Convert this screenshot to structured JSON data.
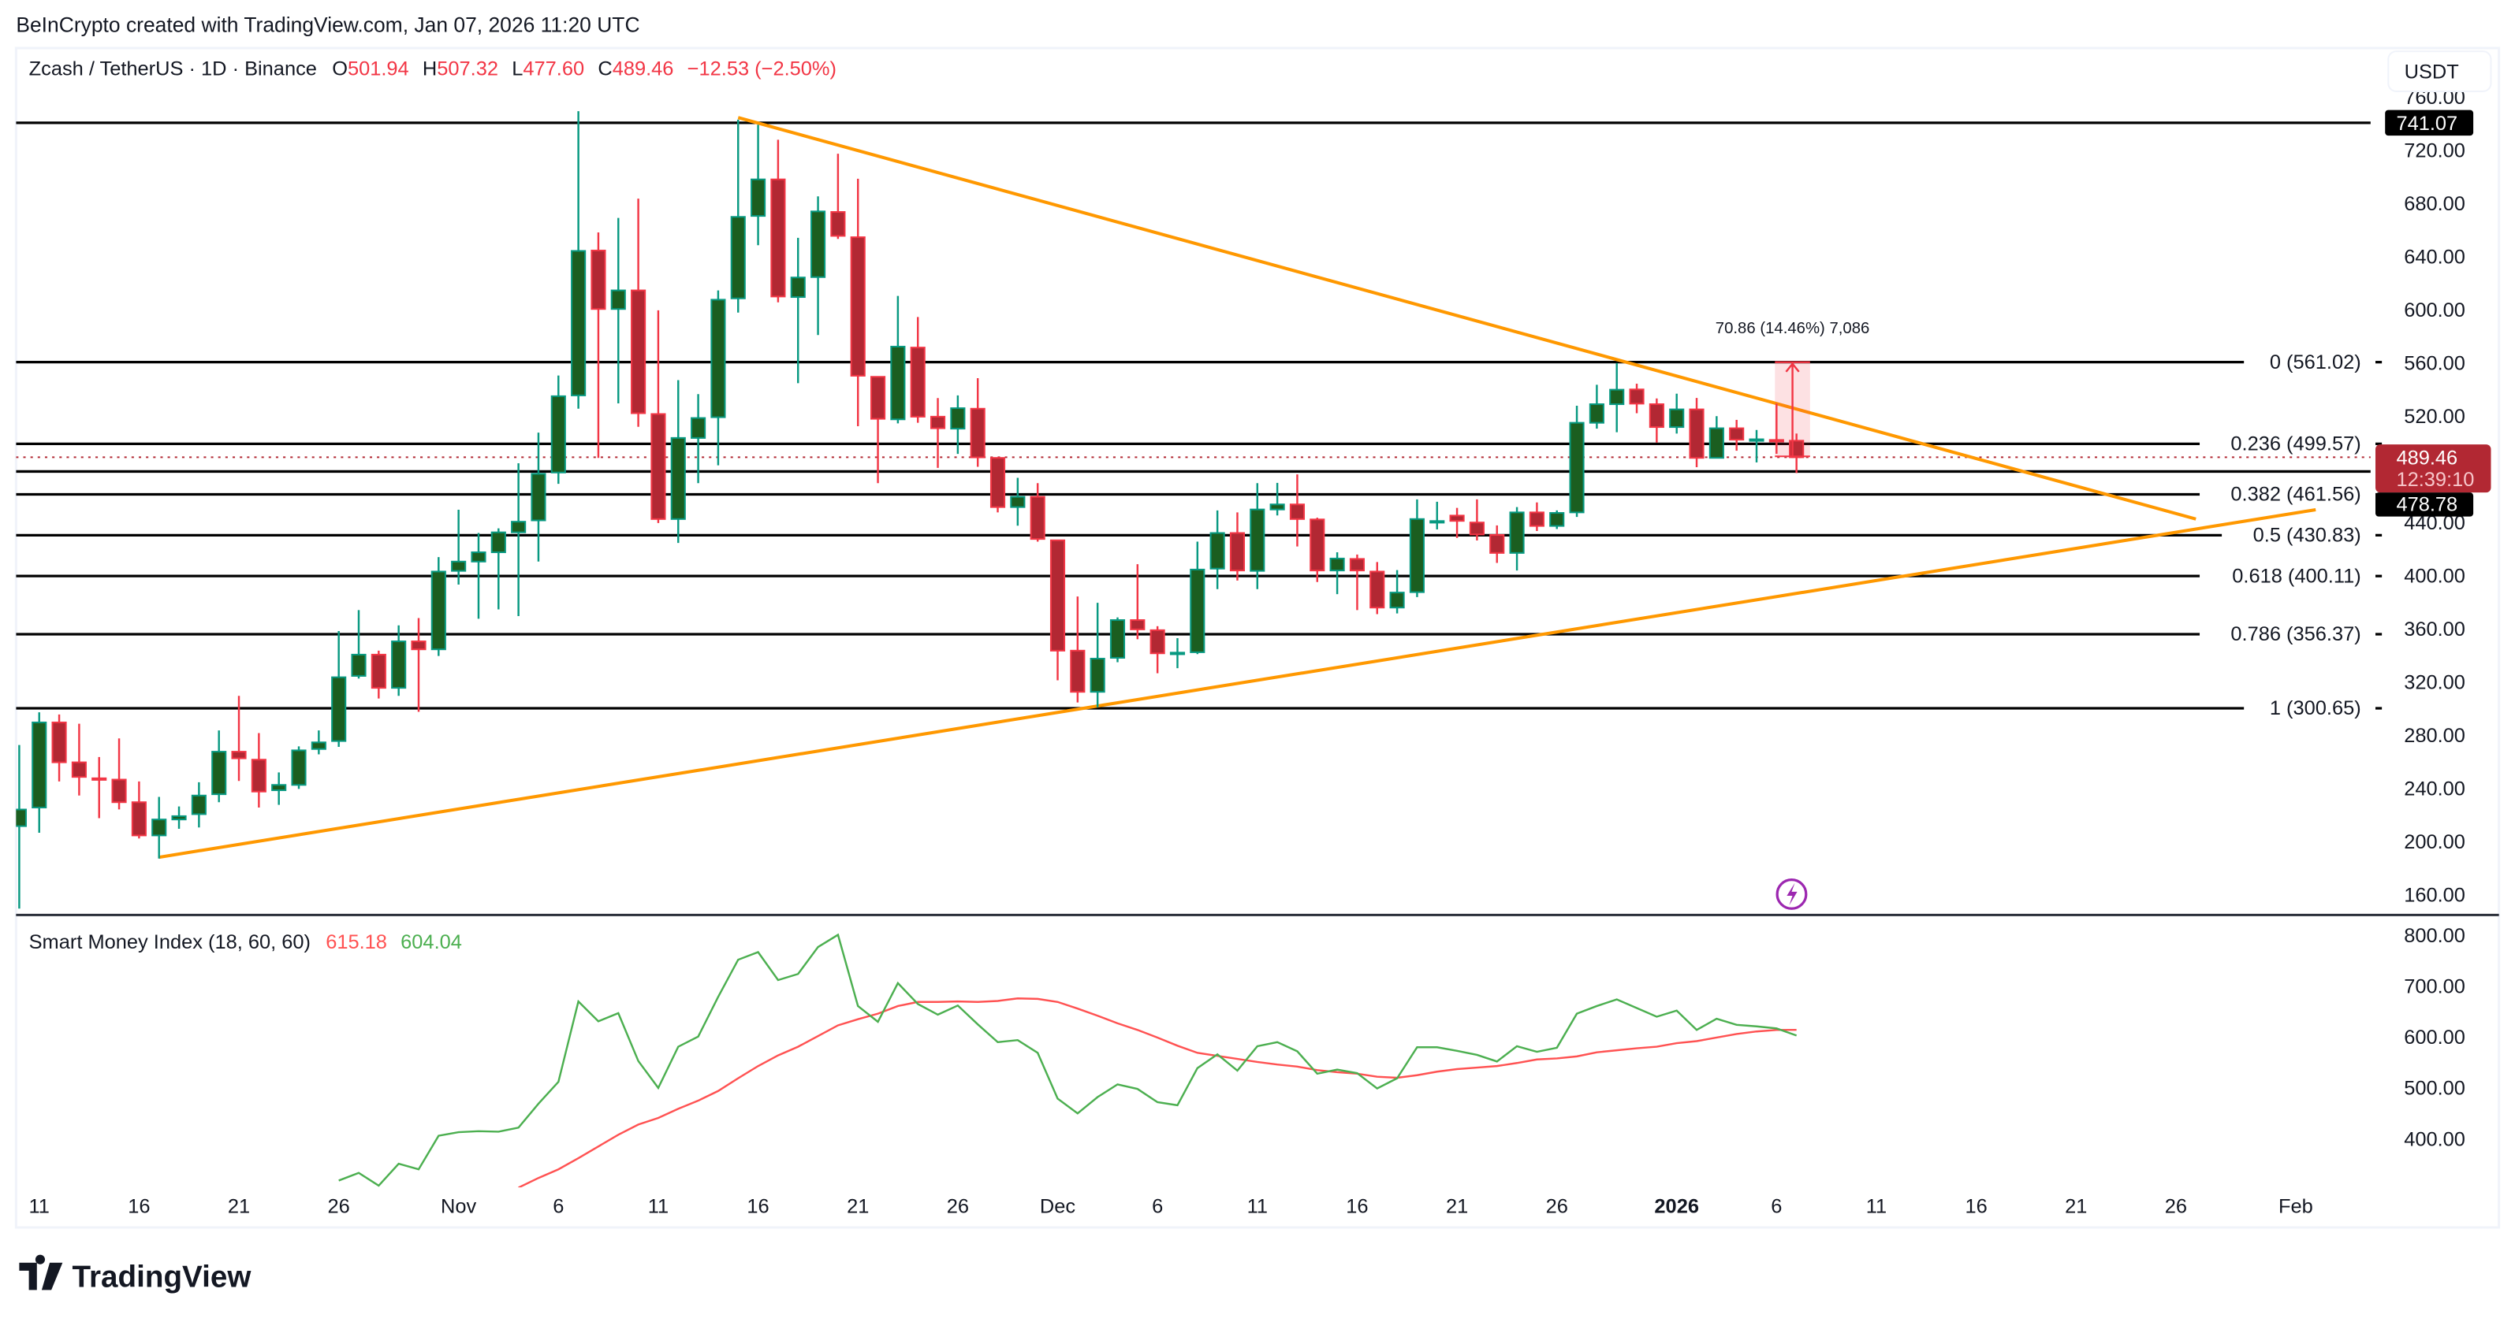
{
  "attribution": "BeInCrypto created with TradingView.com, Jan 07, 2026 11:20 UTC",
  "legend": {
    "symbol": "Zcash / TetherUS · 1D · Binance",
    "o_label": "O",
    "o": "501.94",
    "h_label": "H",
    "h": "507.32",
    "l_label": "L",
    "l": "477.60",
    "c_label": "C",
    "c": "489.46",
    "change": "−12.53 (−2.50%)"
  },
  "currency_button": "USDT",
  "colors": {
    "up_body": "#1b5e20",
    "up_border": "#089981",
    "down_body": "#b22833",
    "down_border": "#f23645",
    "trendline": "#ff9800",
    "smi": "#4caf50",
    "signal": "#ff5252",
    "alert_icon": "#9c27b0"
  },
  "price_axis": {
    "ticks": [
      "760.00",
      "720.00",
      "680.00",
      "640.00",
      "600.00",
      "560.00",
      "520.00",
      "440.00",
      "400.00",
      "360.00",
      "320.00",
      "280.00",
      "240.00",
      "200.00",
      "160.00"
    ],
    "range": [
      150,
      770
    ]
  },
  "price_labels": {
    "high_level": "741.07",
    "last_price": "489.46",
    "countdown": "12:39:10",
    "low_level": "478.78"
  },
  "horizontal_levels": [
    741.07,
    478.78
  ],
  "fib_levels": [
    {
      "label": "0 (561.02)",
      "price": 561.02
    },
    {
      "label": "0.236 (499.57)",
      "price": 499.57
    },
    {
      "label": "0.382 (461.56)",
      "price": 461.56
    },
    {
      "label": "0.5 (430.83)",
      "price": 430.83
    },
    {
      "label": "0.618 (400.11)",
      "price": 400.11
    },
    {
      "label": "0.786 (356.37)",
      "price": 356.37
    },
    {
      "label": "1 (300.65)",
      "price": 300.65
    }
  ],
  "trendlines": [
    {
      "from": [
        "2025-11-15",
        745
      ],
      "to": [
        "2026-01-27",
        443
      ]
    },
    {
      "from": [
        "2025-10-17",
        188.6
      ],
      "to": [
        "2026-02-02",
        450
      ]
    }
  ],
  "measure": {
    "label": "70.86 (14.46%) 7,086",
    "from_price": 490.16,
    "to_price": 561.02,
    "from_date": "2026-01-06",
    "to_date": "2026-01-08"
  },
  "alert_icon": "lightning-icon",
  "indicator": {
    "name": "Smart Money Index (18, 60, 60)",
    "signal_value": "615.18",
    "smi_value": "604.04",
    "axis_ticks": [
      "800.00",
      "700.00",
      "600.00",
      "500.00",
      "400.00"
    ],
    "range": [
      300,
      830
    ]
  },
  "time_axis": [
    {
      "label": "11",
      "date": "2025-10-11"
    },
    {
      "label": "16",
      "date": "2025-10-16"
    },
    {
      "label": "21",
      "date": "2025-10-21"
    },
    {
      "label": "26",
      "date": "2025-10-26"
    },
    {
      "label": "Nov",
      "date": "2025-11-01"
    },
    {
      "label": "6",
      "date": "2025-11-06"
    },
    {
      "label": "11",
      "date": "2025-11-11"
    },
    {
      "label": "16",
      "date": "2025-11-16"
    },
    {
      "label": "21",
      "date": "2025-11-21"
    },
    {
      "label": "26",
      "date": "2025-11-26"
    },
    {
      "label": "Dec",
      "date": "2025-12-01"
    },
    {
      "label": "6",
      "date": "2025-12-06"
    },
    {
      "label": "11",
      "date": "2025-12-11"
    },
    {
      "label": "16",
      "date": "2025-12-16"
    },
    {
      "label": "21",
      "date": "2025-12-21"
    },
    {
      "label": "26",
      "date": "2025-12-26"
    },
    {
      "label": "2026",
      "date": "2026-01-01",
      "bold": true
    },
    {
      "label": "6",
      "date": "2026-01-06"
    },
    {
      "label": "11",
      "date": "2026-01-11"
    },
    {
      "label": "16",
      "date": "2026-01-16"
    },
    {
      "label": "21",
      "date": "2026-01-21"
    },
    {
      "label": "26",
      "date": "2026-01-26"
    },
    {
      "label": "Feb",
      "date": "2026-02-01"
    }
  ],
  "logo": "TradingView",
  "chart_data": {
    "type": "candlestick",
    "columns": [
      "date",
      "open",
      "high",
      "low",
      "close"
    ],
    "candles": [
      [
        "2025-10-10",
        212,
        273,
        150,
        224.5
      ],
      [
        "2025-10-11",
        226,
        297.6,
        207,
        290
      ],
      [
        "2025-10-12",
        290,
        296,
        245.6,
        260
      ],
      [
        "2025-10-13",
        260,
        289,
        235,
        249
      ],
      [
        "2025-10-14",
        248,
        264,
        218,
        247
      ],
      [
        "2025-10-15",
        247,
        278,
        224.6,
        230
      ],
      [
        "2025-10-16",
        230,
        245.6,
        202.7,
        205
      ],
      [
        "2025-10-17",
        205,
        234,
        187.6,
        217
      ],
      [
        "2025-10-18",
        217,
        226.8,
        210,
        219.5
      ],
      [
        "2025-10-19",
        221,
        245,
        211,
        235
      ],
      [
        "2025-10-20",
        236,
        284,
        230,
        268
      ],
      [
        "2025-10-21",
        268,
        310,
        246,
        263
      ],
      [
        "2025-10-22",
        262,
        282,
        226,
        238
      ],
      [
        "2025-10-23",
        239,
        252.4,
        228,
        243
      ],
      [
        "2025-10-24",
        243,
        272,
        240,
        269
      ],
      [
        "2025-10-25",
        270,
        284,
        266,
        275
      ],
      [
        "2025-10-26",
        276,
        358.7,
        271.6,
        324
      ],
      [
        "2025-10-27",
        325,
        374.5,
        323,
        341
      ],
      [
        "2025-10-28",
        341,
        344,
        308,
        316
      ],
      [
        "2025-10-29",
        316,
        363,
        310,
        351
      ],
      [
        "2025-10-30",
        351,
        368.5,
        298,
        345
      ],
      [
        "2025-10-31",
        345,
        414.4,
        340,
        403.5
      ],
      [
        "2025-11-01",
        404,
        450,
        393.7,
        411
      ],
      [
        "2025-11-02",
        411,
        432.5,
        368,
        418
      ],
      [
        "2025-11-03",
        418,
        436,
        375,
        433
      ],
      [
        "2025-11-04",
        433,
        485,
        370,
        441
      ],
      [
        "2025-11-05",
        442,
        508,
        411,
        477
      ],
      [
        "2025-11-06",
        478,
        551,
        469.5,
        535.4
      ],
      [
        "2025-11-07",
        536,
        749.8,
        526,
        644.7
      ],
      [
        "2025-11-08",
        645,
        658.6,
        489,
        601
      ],
      [
        "2025-11-09",
        601,
        669.5,
        530,
        615
      ],
      [
        "2025-11-10",
        615,
        684,
        512.4,
        522.6
      ],
      [
        "2025-11-11",
        522,
        600,
        440,
        443
      ],
      [
        "2025-11-12",
        443,
        547.5,
        425,
        504
      ],
      [
        "2025-11-13",
        504,
        537,
        470,
        519
      ],
      [
        "2025-11-14",
        519.6,
        615,
        483.4,
        608
      ],
      [
        "2025-11-15",
        609,
        743.4,
        598.3,
        670.3
      ],
      [
        "2025-11-16",
        671,
        739.6,
        649,
        698.5
      ],
      [
        "2025-11-17",
        698.5,
        728.3,
        606,
        610.4
      ],
      [
        "2025-11-18",
        610,
        654.5,
        545.2,
        624.7
      ],
      [
        "2025-11-19",
        625,
        685.7,
        581.4,
        674.4
      ],
      [
        "2025-11-20",
        674,
        717.8,
        653.7,
        656
      ],
      [
        "2025-11-21",
        655,
        699,
        512.8,
        550.8
      ],
      [
        "2025-11-22",
        550,
        550,
        470,
        518.4
      ],
      [
        "2025-11-23",
        518,
        610.8,
        515,
        572.7
      ],
      [
        "2025-11-24",
        572,
        595,
        515.4,
        520
      ],
      [
        "2025-11-25",
        520,
        534,
        481.5,
        511.3
      ],
      [
        "2025-11-26",
        511,
        536,
        492,
        526.4
      ],
      [
        "2025-11-27",
        526,
        549,
        482.3,
        489.4
      ],
      [
        "2025-11-28",
        489,
        489,
        448,
        452
      ],
      [
        "2025-11-29",
        452,
        474,
        438,
        459.7
      ],
      [
        "2025-11-30",
        459.7,
        470,
        426,
        428
      ],
      [
        "2025-12-01",
        427,
        427,
        321.7,
        344
      ],
      [
        "2025-12-02",
        344,
        384.7,
        305,
        313
      ],
      [
        "2025-12-03",
        313,
        380,
        301.4,
        338
      ],
      [
        "2025-12-04",
        338.6,
        369,
        335.3,
        367
      ],
      [
        "2025-12-05",
        367,
        409,
        352.6,
        360
      ],
      [
        "2025-12-06",
        359.4,
        362.4,
        327,
        342
      ],
      [
        "2025-12-07",
        341.5,
        353.4,
        330.8,
        342.5
      ],
      [
        "2025-12-08",
        342.8,
        426,
        341.4,
        405
      ],
      [
        "2025-12-09",
        405.7,
        449.5,
        390.3,
        432.5
      ],
      [
        "2025-12-10",
        432.5,
        448,
        396.7,
        404.3
      ],
      [
        "2025-12-11",
        404,
        470,
        390.3,
        450.2
      ],
      [
        "2025-12-12",
        450.2,
        470.2,
        445.7,
        454
      ],
      [
        "2025-12-13",
        454,
        476.6,
        422.4,
        443
      ],
      [
        "2025-12-14",
        442.7,
        444,
        395.6,
        404.3
      ],
      [
        "2025-12-15",
        404.3,
        418,
        386.5,
        413.3
      ],
      [
        "2025-12-16",
        413,
        416.3,
        374.5,
        404.3
      ],
      [
        "2025-12-17",
        403.5,
        410.7,
        371.5,
        376.4
      ],
      [
        "2025-12-18",
        376.4,
        404.6,
        372,
        387.7
      ],
      [
        "2025-12-19",
        388,
        457.8,
        384.3,
        443
      ],
      [
        "2025-12-20",
        440.5,
        456,
        435.2,
        441.5
      ],
      [
        "2025-12-21",
        445.6,
        451.4,
        428.8,
        441.6
      ],
      [
        "2025-12-22",
        440.4,
        457.8,
        426.9,
        431.4
      ],
      [
        "2025-12-23",
        431,
        438.2,
        410,
        417.5
      ],
      [
        "2025-12-24",
        417.5,
        452,
        404.3,
        448
      ],
      [
        "2025-12-25",
        448,
        455.5,
        434,
        437.8
      ],
      [
        "2025-12-26",
        437.8,
        449.5,
        435.5,
        447.6
      ],
      [
        "2025-12-27",
        448,
        528.2,
        444.6,
        515.4
      ],
      [
        "2025-12-28",
        515.4,
        544,
        511,
        529.4
      ],
      [
        "2025-12-29",
        529.4,
        560.3,
        508.3,
        540.3
      ],
      [
        "2025-12-30",
        540.5,
        544.8,
        522.6,
        529.8
      ],
      [
        "2025-12-31",
        529.4,
        533.7,
        500.5,
        512.2
      ],
      [
        "2026-01-01",
        512.2,
        537.3,
        507.3,
        525.5
      ],
      [
        "2026-01-02",
        525.5,
        534.1,
        482,
        489
      ],
      [
        "2026-01-03",
        489,
        520.4,
        489,
        511.3
      ],
      [
        "2026-01-04",
        511.3,
        517.6,
        494.4,
        502.7
      ],
      [
        "2026-01-05",
        502.5,
        510,
        485.6,
        503
      ],
      [
        "2026-01-06",
        502.5,
        529.8,
        492.1,
        501.94
      ],
      [
        "2026-01-07",
        501.94,
        507.32,
        477.6,
        489.46
      ]
    ],
    "smi": [
      null,
      null,
      null,
      null,
      null,
      null,
      null,
      null,
      null,
      null,
      null,
      null,
      null,
      null,
      null,
      null,
      319,
      334,
      309,
      352,
      341,
      407,
      414,
      416,
      415,
      423,
      470,
      513,
      671,
      632,
      648,
      554,
      501,
      582,
      602,
      680,
      753,
      768,
      713,
      725,
      778,
      802,
      662,
      631,
      707,
      666,
      645,
      663,
      626,
      591,
      595,
      570,
      480,
      451,
      483,
      508,
      499,
      473,
      467,
      540,
      567,
      535,
      583,
      591,
      573,
      529,
      537,
      530,
      500,
      520,
      581,
      581,
      574,
      566,
      553,
      583,
      572,
      580,
      647,
      662,
      675,
      658,
      641,
      653,
      615,
      637,
      625,
      622,
      618,
      604.04
    ],
    "signal": [
      null,
      null,
      null,
      null,
      null,
      null,
      null,
      null,
      null,
      null,
      null,
      null,
      null,
      null,
      null,
      null,
      null,
      null,
      null,
      null,
      null,
      null,
      null,
      null,
      null,
      305,
      324,
      341,
      363,
      386,
      409,
      429,
      442,
      460,
      476,
      495,
      520,
      544,
      565,
      582,
      603,
      624,
      636,
      647,
      662,
      670,
      670,
      671,
      670,
      672,
      677,
      676,
      670,
      657,
      643,
      628,
      615,
      600,
      584,
      570,
      564,
      558,
      552,
      547,
      543,
      536,
      532,
      529,
      523,
      521,
      526,
      533,
      538,
      541,
      544,
      550,
      557,
      559,
      563,
      571,
      575,
      579,
      582,
      589,
      593,
      600,
      607,
      612,
      615,
      615.18
    ]
  }
}
